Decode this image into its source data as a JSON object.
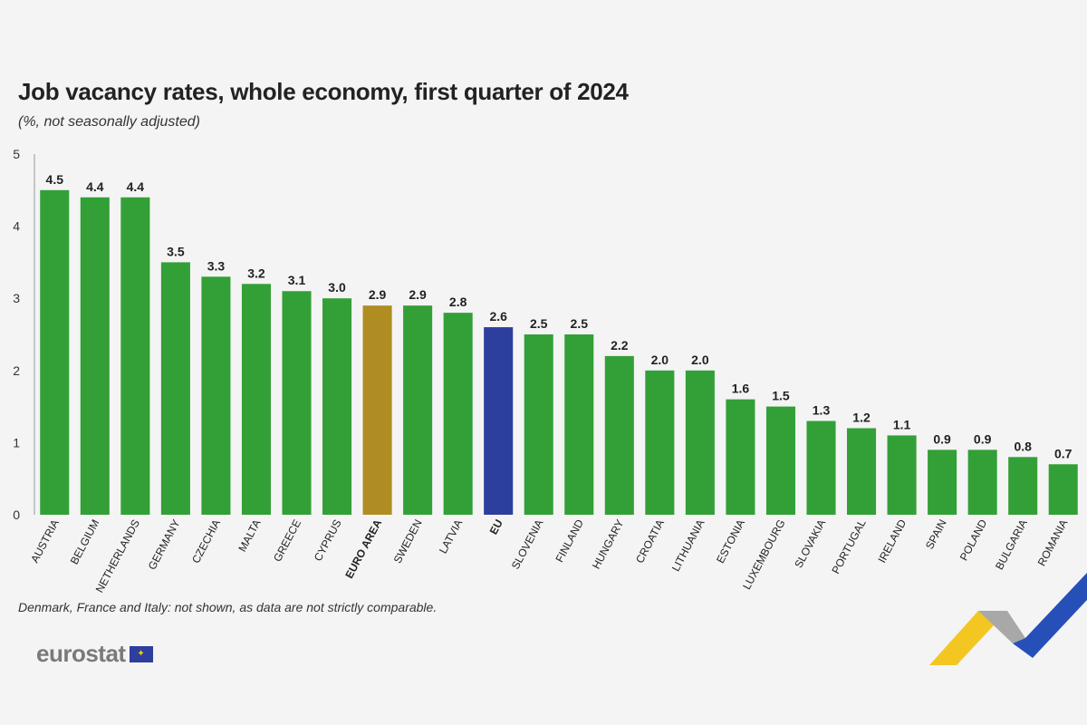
{
  "header": {
    "title": "Job vacancy rates, whole economy, first quarter of 2024",
    "subtitle": "(%, not seasonally adjusted)"
  },
  "footer": {
    "note": "Denmark, France and Italy: not shown, as data are not strictly comparable.",
    "logo_text": "eurostat"
  },
  "colors": {
    "country": "#33a037",
    "euro_area": "#b08d22",
    "eu": "#2d3f9e",
    "axis": "#999999",
    "text": "#222222"
  },
  "chart_data": {
    "type": "bar",
    "title": "Job vacancy rates, whole economy, first quarter of 2024",
    "subtitle": "(%, not seasonally adjusted)",
    "xlabel": "",
    "ylabel": "",
    "ylim": [
      0,
      5
    ],
    "yticks": [
      0,
      1,
      2,
      3,
      4,
      5
    ],
    "grid": false,
    "categories": [
      "AUSTRIA",
      "BELGIUM",
      "NETHERLANDS",
      "GERMANY",
      "CZECHIA",
      "MALTA",
      "GREECE",
      "CYPRUS",
      "EURO AREA",
      "SWEDEN",
      "LATVIA",
      "EU",
      "SLOVENIA",
      "FINLAND",
      "HUNGARY",
      "CROATIA",
      "LITHUANIA",
      "ESTONIA",
      "LUXEMBOURG",
      "SLOVAKIA",
      "PORTUGAL",
      "IRELAND",
      "SPAIN",
      "POLAND",
      "BULGARIA",
      "ROMANIA"
    ],
    "values": [
      4.5,
      4.4,
      4.4,
      3.5,
      3.3,
      3.2,
      3.1,
      3.0,
      2.9,
      2.9,
      2.8,
      2.6,
      2.5,
      2.5,
      2.2,
      2.0,
      2.0,
      1.6,
      1.5,
      1.3,
      1.2,
      1.1,
      0.9,
      0.9,
      0.8,
      0.7
    ],
    "labels": [
      "4.5",
      "4.4",
      "4.4",
      "3.5",
      "3.3",
      "3.2",
      "3.1",
      "3.0",
      "2.9",
      "2.9",
      "2.8",
      "2.6",
      "2.5",
      "2.5",
      "2.2",
      "2.0",
      "2.0",
      "1.6",
      "1.5",
      "1.3",
      "1.2",
      "1.1",
      "0.9",
      "0.9",
      "0.8",
      "0.7"
    ],
    "highlight": {
      "EURO AREA": "euro_area",
      "EU": "eu"
    }
  }
}
